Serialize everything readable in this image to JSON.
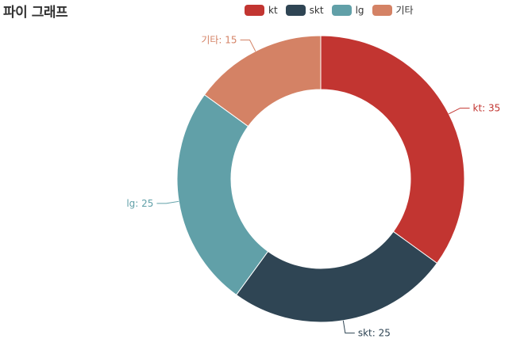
{
  "title": "파이 그래프",
  "chart_data": {
    "type": "pie",
    "style": "donut",
    "title": "파이 그래프",
    "legend_position": "top",
    "slices": [
      {
        "name": "kt",
        "value": 35,
        "label": "kt: 35",
        "color": "#c23531"
      },
      {
        "name": "skt",
        "value": 25,
        "label": "skt: 25",
        "color": "#2f4554"
      },
      {
        "name": "lg",
        "value": 25,
        "label": "lg: 25",
        "color": "#61a0a8"
      },
      {
        "name": "기타",
        "value": 15,
        "label": "기타: 15",
        "color": "#d48265"
      }
    ]
  }
}
